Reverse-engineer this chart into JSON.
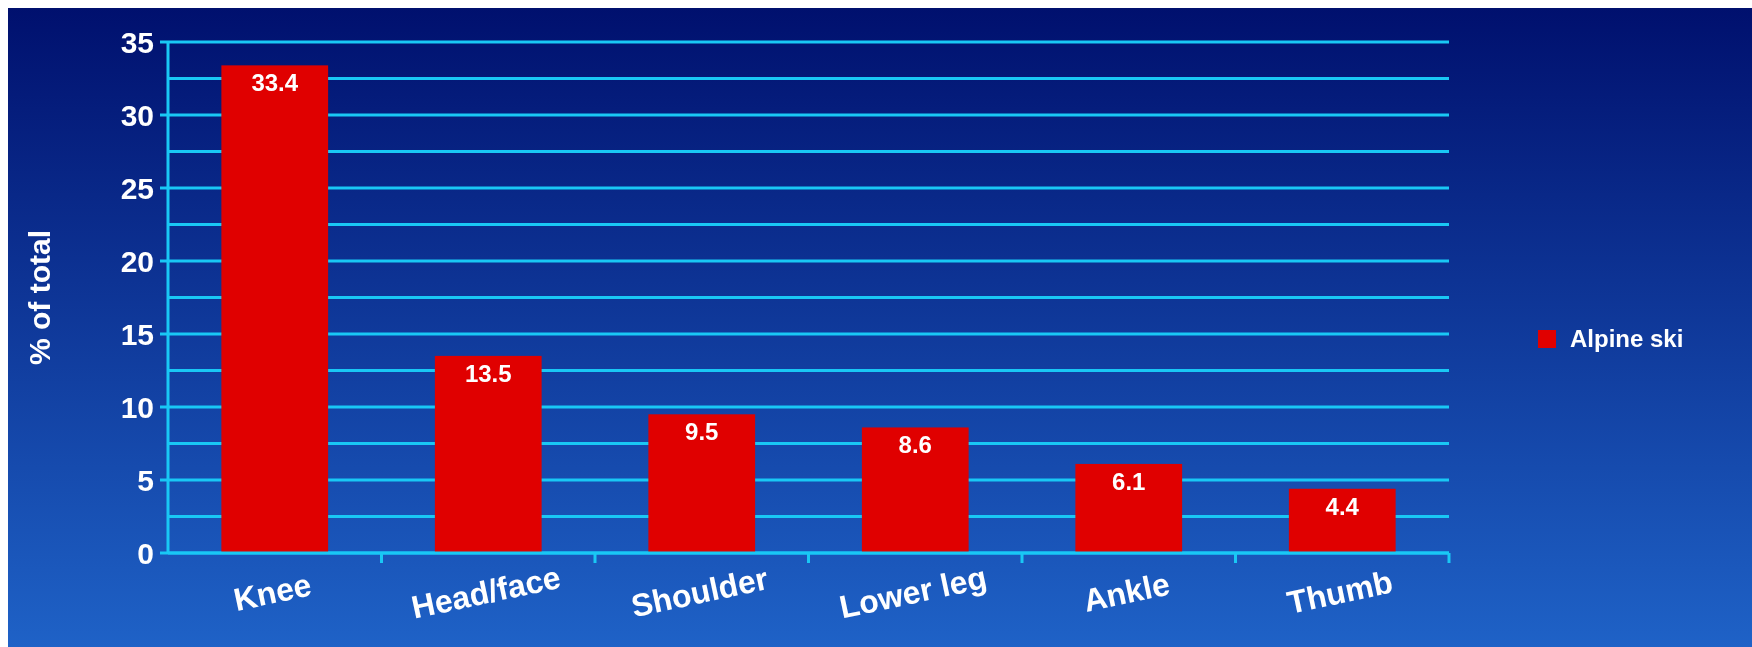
{
  "chart_data": {
    "type": "bar",
    "ylabel": "% of total",
    "categories": [
      "Knee",
      "Head/face",
      "Shoulder",
      "Lower leg",
      "Ankle",
      "Thumb"
    ],
    "series": [
      {
        "name": "Alpine ski",
        "color": "#e00000",
        "values": [
          33.4,
          13.5,
          9.5,
          8.6,
          6.1,
          4.4
        ]
      }
    ],
    "ylim": [
      0,
      35
    ],
    "yticks": [
      0,
      {
        "value": 2.5,
        "label": null
      },
      5,
      {
        "value": 7.5,
        "label": null
      },
      10,
      {
        "value": 12.5,
        "label": null
      },
      15,
      {
        "value": 17.5,
        "label": null
      },
      20,
      {
        "value": 22.5,
        "label": null
      },
      25,
      {
        "value": 27.5,
        "label": null
      },
      30,
      {
        "value": 32.5,
        "label": null
      },
      35
    ],
    "grid": true,
    "data_labels": true,
    "legend": "right"
  }
}
